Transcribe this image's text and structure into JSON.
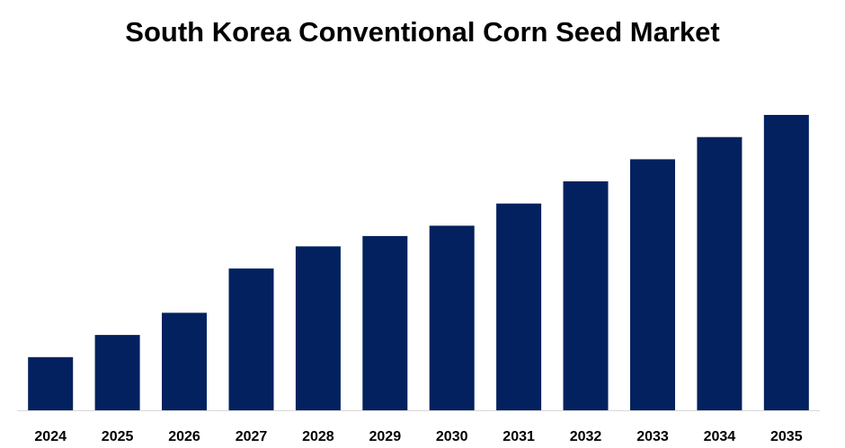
{
  "chart_data": {
    "type": "bar",
    "title": "South Korea Conventional Corn Seed Market",
    "xlabel": "",
    "ylabel": "",
    "categories": [
      "2024",
      "2025",
      "2026",
      "2027",
      "2028",
      "2029",
      "2030",
      "2031",
      "2032",
      "2033",
      "2034",
      "2035"
    ],
    "values": [
      18,
      25.5,
      33,
      48,
      55.5,
      59,
      62.5,
      70,
      77.5,
      85,
      92.5,
      100
    ],
    "ylim": [
      0,
      100
    ],
    "bar_color": "#03215f",
    "axis_color": "#d9d9d9",
    "grid": false,
    "legend": "none"
  }
}
